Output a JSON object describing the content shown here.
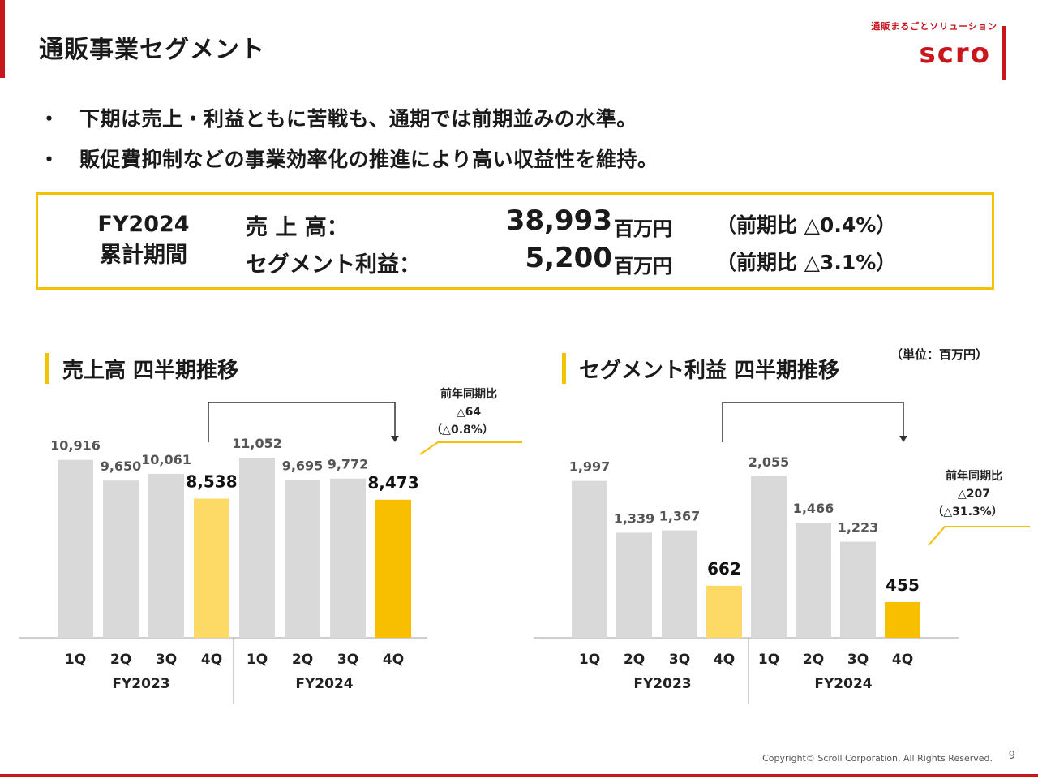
{
  "title": "通販事業セグメント",
  "logo": {
    "tagline": "通販まるごとソリューション",
    "word": "scro"
  },
  "bullets": [
    {
      "mark": "・",
      "text": "下期は売上・利益ともに苦戦も、通期では前期並みの水準。"
    },
    {
      "mark": "・",
      "text": "販促費抑制などの事業効率化の推進により高い収益性を維持。"
    }
  ],
  "summary": {
    "period_line1": "FY2024",
    "period_line2": "累計期間",
    "rows": [
      {
        "label": "売 上 高：",
        "value": "38,993",
        "unit": "百万円",
        "yoy": "（前期比 △0.4%）"
      },
      {
        "label": "セグメント利益：",
        "value": "5,200",
        "unit": "百万円",
        "yoy": "（前期比 △3.1%）"
      }
    ]
  },
  "unit_note": "（単位：百万円）",
  "charts": {
    "sales_title": "売上高 四半期推移",
    "profit_title": "セグメント利益 四半期推移"
  },
  "colors": {
    "gray": "#d9d9d9",
    "light_yellow": "#fdd966",
    "yellow": "#f8bf00",
    "accent": "#c8161d"
  },
  "chart_data": [
    {
      "type": "bar",
      "title": "売上高 四半期推移",
      "categories": [
        "1Q",
        "2Q",
        "3Q",
        "4Q",
        "1Q",
        "2Q",
        "3Q",
        "4Q"
      ],
      "groups": [
        "FY2023",
        "FY2024"
      ],
      "values": [
        10916,
        9650,
        10061,
        8538,
        11052,
        9695,
        9772,
        8473
      ],
      "value_labels": [
        "10,916",
        "9,650",
        "10,061",
        "8,538",
        "11,052",
        "9,695",
        "9,772",
        "8,473"
      ],
      "ylim": [
        0,
        12000
      ],
      "annotation": {
        "line1": "前年同期比",
        "line2": "△64",
        "line3": "（△0.8%）"
      }
    },
    {
      "type": "bar",
      "title": "セグメント利益 四半期推移",
      "categories": [
        "1Q",
        "2Q",
        "3Q",
        "4Q",
        "1Q",
        "2Q",
        "3Q",
        "4Q"
      ],
      "groups": [
        "FY2023",
        "FY2024"
      ],
      "values": [
        1997,
        1339,
        1367,
        662,
        2055,
        1466,
        1223,
        455
      ],
      "value_labels": [
        "1,997",
        "1,339",
        "1,367",
        "662",
        "2,055",
        "1,466",
        "1,223",
        "455"
      ],
      "ylim": [
        0,
        2200
      ],
      "annotation": {
        "line1": "前年同期比",
        "line2": "△207",
        "line3": "（△31.3%）"
      }
    }
  ],
  "footer": {
    "copyright": "Copyright© Scroll Corporation. All Rights Reserved.",
    "page": "9"
  }
}
